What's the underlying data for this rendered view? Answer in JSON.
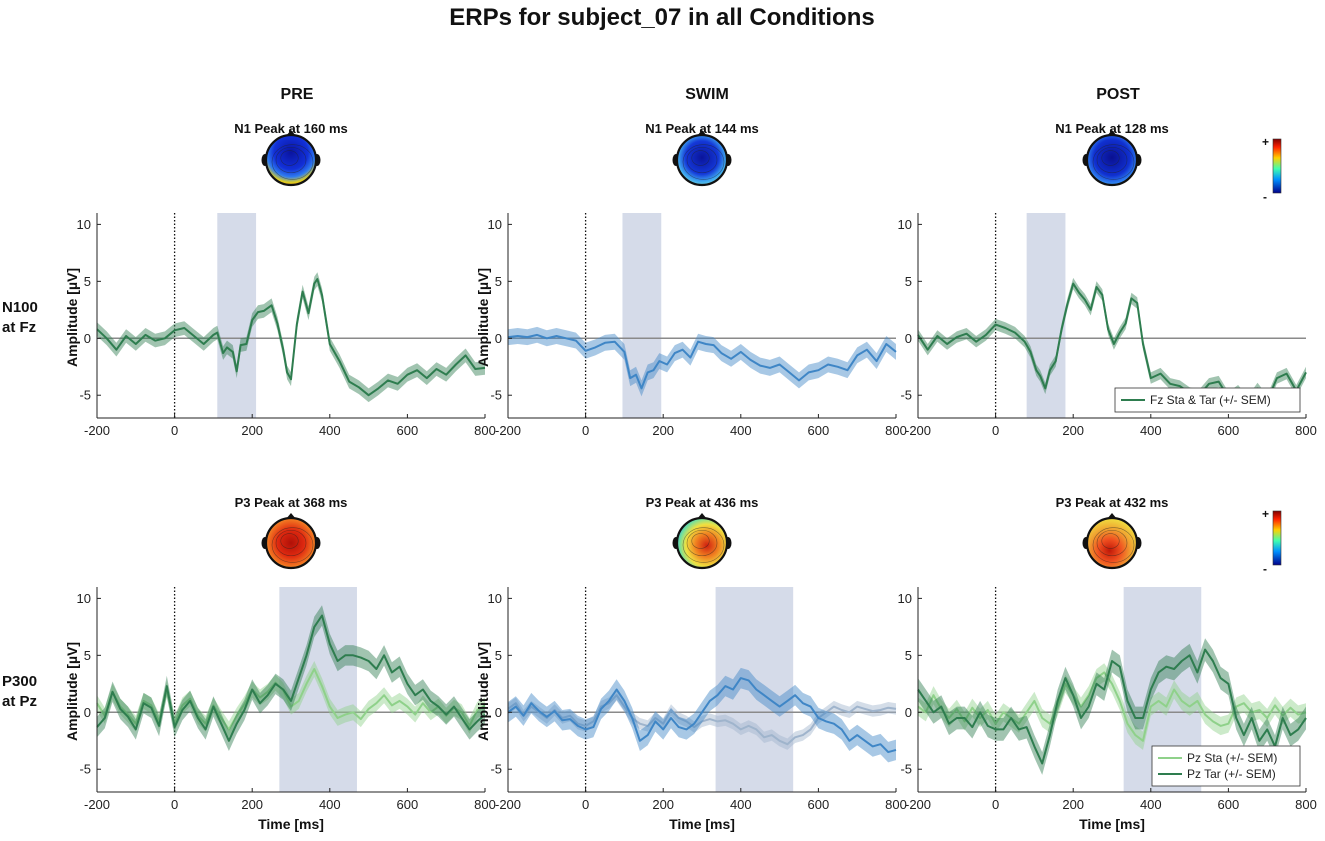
{
  "figure": {
    "title": "ERPs for subject_07 in all Conditions",
    "columns": [
      "PRE",
      "SWIM",
      "POST"
    ],
    "row_labels": [
      {
        "line1": "N100",
        "line2": "at Fz"
      },
      {
        "line1": "P300",
        "line2": "at Pz"
      }
    ],
    "colorbar": {
      "plus": "+",
      "minus": "-"
    }
  },
  "colors": {
    "dark_green": "#2e7d4f",
    "light_green": "#8fd18a",
    "blue": "#3f86c6",
    "light_blue": "#9fb4cc",
    "window": "#d3d9e8",
    "zero_line": "#8a8a8a"
  },
  "chart_data": [
    {
      "type": "line",
      "id": "pre-n100",
      "condition": "PRE",
      "row": 0,
      "peak_title": "N1 Peak at 160 ms",
      "topomap": "n1-pre",
      "xlim": [
        -200,
        800
      ],
      "ylim": [
        -7,
        11
      ],
      "xticks": [
        -200,
        0,
        200,
        400,
        600,
        800
      ],
      "yticks": [
        -5,
        0,
        5,
        10
      ],
      "ylabel": "Amplitude [µV]",
      "xlabel": "",
      "window": [
        110,
        210
      ],
      "x": [
        -200,
        -175,
        -150,
        -125,
        -100,
        -75,
        -50,
        -25,
        0,
        25,
        50,
        75,
        100,
        110,
        125,
        135,
        150,
        160,
        170,
        185,
        200,
        215,
        230,
        250,
        265,
        280,
        290,
        300,
        315,
        330,
        345,
        360,
        368,
        380,
        400,
        425,
        450,
        475,
        500,
        525,
        550,
        575,
        600,
        625,
        650,
        675,
        700,
        725,
        750,
        775,
        800
      ],
      "series": [
        {
          "name": "Fz Sta & Tar (+/- SEM)",
          "color_key": "dark_green",
          "values": [
            0.8,
            0,
            -1,
            0.2,
            -0.5,
            0.3,
            -0.2,
            0,
            0.7,
            0.9,
            0.2,
            -0.5,
            0.3,
            0.5,
            -1.3,
            -0.8,
            -1.2,
            -2.9,
            -0.6,
            -0.5,
            1.6,
            2.3,
            2.4,
            2.9,
            1.3,
            -1.0,
            -3.0,
            -3.6,
            1.2,
            4.1,
            2.2,
            4.8,
            5.2,
            3.8,
            -0.5,
            -2.0,
            -3.8,
            -4.3,
            -5.0,
            -4.4,
            -3.7,
            -4.0,
            -3.2,
            -2.8,
            -3.5,
            -2.7,
            -3.2,
            -2.3,
            -1.5,
            -2.7,
            -2.6
          ],
          "sem": 0.6
        }
      ],
      "legend": null
    },
    {
      "type": "line",
      "id": "swim-n100",
      "condition": "SWIM",
      "row": 0,
      "peak_title": "N1 Peak at 144 ms",
      "topomap": "n1-swim",
      "xlim": [
        -200,
        800
      ],
      "ylim": [
        -7,
        11
      ],
      "xticks": [
        -200,
        0,
        200,
        400,
        600,
        800
      ],
      "yticks": [
        -5,
        0,
        5,
        10
      ],
      "ylabel": "Amplitude [µV]",
      "xlabel": "",
      "window": [
        95,
        195
      ],
      "x": [
        -200,
        -175,
        -150,
        -125,
        -100,
        -75,
        -50,
        -25,
        0,
        25,
        50,
        75,
        100,
        115,
        130,
        144,
        160,
        175,
        190,
        210,
        230,
        250,
        270,
        290,
        310,
        330,
        350,
        375,
        400,
        425,
        450,
        475,
        500,
        525,
        550,
        575,
        600,
        625,
        650,
        675,
        700,
        725,
        750,
        775,
        800
      ],
      "series": [
        {
          "name": "Fz Sta & Tar (+/- SEM)",
          "color_key": "blue",
          "values": [
            0.1,
            0.2,
            0.1,
            0.3,
            0,
            0.2,
            0,
            -0.2,
            -1.1,
            -0.8,
            -0.4,
            -0.3,
            -1.2,
            -3.5,
            -3.2,
            -4.4,
            -3.0,
            -2.8,
            -2.0,
            -2.3,
            -1.3,
            -1.0,
            -1.7,
            -0.3,
            -0.5,
            -0.6,
            -1.3,
            -1.8,
            -1.2,
            -1.9,
            -2.4,
            -2.6,
            -2.3,
            -3.0,
            -3.7,
            -3.0,
            -2.8,
            -2.3,
            -2.5,
            -2.8,
            -1.5,
            -1.0,
            -2.0,
            -0.5,
            -1.2
          ],
          "sem": 0.7
        }
      ],
      "legend": null
    },
    {
      "type": "line",
      "id": "post-n100",
      "condition": "POST",
      "row": 0,
      "peak_title": "N1 Peak at 128 ms",
      "topomap": "n1-post",
      "xlim": [
        -200,
        800
      ],
      "ylim": [
        -7,
        11
      ],
      "xticks": [
        -200,
        0,
        200,
        400,
        600,
        800
      ],
      "yticks": [
        -5,
        0,
        5,
        10
      ],
      "ylabel": "",
      "xlabel": "",
      "window": [
        80,
        180
      ],
      "x": [
        -200,
        -175,
        -150,
        -125,
        -100,
        -75,
        -50,
        -25,
        0,
        25,
        50,
        75,
        90,
        105,
        115,
        128,
        140,
        155,
        170,
        185,
        200,
        215,
        230,
        245,
        260,
        275,
        290,
        305,
        320,
        335,
        350,
        365,
        380,
        400,
        425,
        450,
        475,
        500,
        525,
        550,
        575,
        600,
        625,
        650,
        675,
        700,
        725,
        750,
        775,
        800
      ],
      "series": [
        {
          "name": "Fz Sta & Tar (+/- SEM)",
          "color_key": "dark_green",
          "values": [
            0.3,
            -1.0,
            0.2,
            -0.5,
            0.1,
            0.4,
            -0.3,
            0.3,
            1.2,
            0.9,
            0.5,
            -0.3,
            -1.2,
            -2.8,
            -3.3,
            -4.4,
            -2.8,
            -2.0,
            0.8,
            3.0,
            4.8,
            4.0,
            3.4,
            2.5,
            4.5,
            3.8,
            0.8,
            -0.5,
            0.5,
            1.3,
            3.5,
            3.1,
            -0.5,
            -3.5,
            -3.1,
            -4.0,
            -4.2,
            -4.8,
            -5.0,
            -4.0,
            -3.8,
            -5.2,
            -4.6,
            -5.6,
            -4.4,
            -5.5,
            -3.5,
            -3.1,
            -4.6,
            -3.0
          ],
          "sem": 0.5
        }
      ],
      "legend": {
        "position": "bottom-right",
        "entries": [
          {
            "label": "Fz Sta & Tar (+/- SEM)",
            "color_key": "dark_green"
          }
        ]
      }
    },
    {
      "type": "line",
      "id": "pre-p300",
      "condition": "PRE",
      "row": 1,
      "peak_title": "P3 Peak at 368 ms",
      "topomap": "p3-pre",
      "xlim": [
        -200,
        800
      ],
      "ylim": [
        -7,
        11
      ],
      "xticks": [
        -200,
        0,
        200,
        400,
        600,
        800
      ],
      "yticks": [
        -5,
        0,
        5,
        10
      ],
      "ylabel": "Amplitude [µV]",
      "xlabel": "Time [ms]",
      "window": [
        270,
        470
      ],
      "x": [
        -200,
        -180,
        -160,
        -140,
        -120,
        -100,
        -80,
        -60,
        -40,
        -20,
        0,
        20,
        40,
        60,
        80,
        100,
        120,
        140,
        160,
        180,
        200,
        220,
        240,
        260,
        280,
        300,
        320,
        340,
        360,
        380,
        400,
        420,
        440,
        460,
        480,
        500,
        520,
        540,
        560,
        580,
        600,
        620,
        640,
        660,
        680,
        700,
        720,
        740,
        760,
        780,
        800
      ],
      "series": [
        {
          "name": "Pz Sta (+/- SEM)",
          "color_key": "light_green",
          "values": [
            0.8,
            -0.3,
            1.8,
            0.5,
            -0.2,
            -1.0,
            1.0,
            0.6,
            -0.8,
            2.0,
            -1.0,
            0.6,
            1.2,
            -0.3,
            -1.0,
            0.6,
            -0.5,
            -1.5,
            -0.3,
            0.7,
            2.0,
            1.3,
            1.8,
            2.6,
            1.9,
            0.5,
            1.0,
            2.5,
            3.8,
            2.3,
            0.5,
            -0.5,
            -0.2,
            0,
            -0.6,
            0.3,
            0.8,
            1.5,
            0.6,
            1.0,
            0.5,
            -0.2,
            0.8,
            0,
            0.5,
            -0.3,
            0.4,
            0,
            -1.2,
            0.2,
            0.6
          ],
          "sem": 0.7
        },
        {
          "name": "Pz Tar (+/- SEM)",
          "color_key": "dark_green",
          "values": [
            -1.3,
            -0.5,
            1.8,
            0.3,
            -0.4,
            -1.5,
            0.8,
            0.4,
            -1.2,
            2.3,
            -1.3,
            0.2,
            1.0,
            -0.5,
            -1.5,
            0.5,
            -1.0,
            -2.5,
            -1.0,
            0.2,
            2.0,
            0.8,
            1.5,
            2.5,
            2.0,
            1.0,
            3.0,
            5.0,
            7.5,
            8.5,
            6.0,
            4.5,
            5.0,
            5.0,
            4.8,
            4.5,
            3.8,
            5.0,
            3.5,
            4.0,
            2.5,
            1.5,
            2.0,
            1.0,
            0.5,
            -0.2,
            0.5,
            -0.5,
            -1.5,
            -0.8,
            -0.2
          ],
          "sem": 0.9
        }
      ],
      "legend": null
    },
    {
      "type": "line",
      "id": "swim-p300",
      "condition": "SWIM",
      "row": 1,
      "peak_title": "P3 Peak at 436 ms",
      "topomap": "p3-swim",
      "xlim": [
        -200,
        800
      ],
      "ylim": [
        -7,
        11
      ],
      "xticks": [
        -200,
        0,
        200,
        400,
        600,
        800
      ],
      "yticks": [
        -5,
        0,
        5,
        10
      ],
      "ylabel": "Amplitude [µV]",
      "xlabel": "Time [ms]",
      "window": [
        335,
        535
      ],
      "x": [
        -200,
        -180,
        -160,
        -140,
        -120,
        -100,
        -80,
        -60,
        -40,
        -20,
        0,
        20,
        40,
        60,
        80,
        100,
        120,
        140,
        160,
        180,
        200,
        220,
        240,
        260,
        280,
        300,
        320,
        340,
        360,
        380,
        400,
        420,
        440,
        460,
        480,
        500,
        520,
        540,
        560,
        580,
        600,
        620,
        640,
        660,
        680,
        700,
        720,
        740,
        760,
        780,
        800
      ],
      "series": [
        {
          "name": "Pz Sta (+/- SEM)",
          "color_key": "light_blue",
          "values": [
            0.3,
            0.8,
            -0.3,
            0.5,
            0,
            -0.5,
            0.2,
            -0.5,
            -0.3,
            -1.0,
            -1.2,
            -0.8,
            0.5,
            0.8,
            1.5,
            0.5,
            -0.5,
            -1.0,
            -1.2,
            -0.5,
            -1.0,
            0.2,
            -0.5,
            -0.8,
            -1.3,
            -0.8,
            -0.6,
            -0.8,
            -0.7,
            -1.0,
            -1.5,
            -1.2,
            -1.5,
            -2.2,
            -2.0,
            -2.5,
            -2.8,
            -2.2,
            -2.0,
            -1.5,
            -0.5,
            0,
            0.5,
            0.2,
            0,
            0.5,
            0.3,
            0.1,
            0.2,
            0.4,
            0.3
          ],
          "sem": 0.5
        },
        {
          "name": "Pz Tar (+/- SEM)",
          "color_key": "blue",
          "values": [
            0,
            0.5,
            -0.3,
            0.8,
            0.1,
            -0.4,
            0.1,
            -0.7,
            -0.6,
            -1.2,
            -1.5,
            -1.3,
            0.3,
            1.0,
            2.0,
            1.0,
            -0.5,
            -2.5,
            -2.0,
            -0.8,
            -1.5,
            -0.5,
            -1.3,
            -1.5,
            -1.0,
            0,
            1.0,
            1.5,
            2.3,
            2.0,
            3.0,
            2.8,
            2.0,
            1.5,
            1.0,
            0.5,
            1.0,
            1.5,
            0.8,
            0.5,
            -0.5,
            -0.8,
            -1.0,
            -1.5,
            -2.5,
            -2.0,
            -2.5,
            -3.0,
            -2.8,
            -3.5,
            -3.3
          ],
          "sem": 0.9
        }
      ],
      "legend": null
    },
    {
      "type": "line",
      "id": "post-p300",
      "condition": "POST",
      "row": 1,
      "peak_title": "P3 Peak at 432 ms",
      "topomap": "p3-post",
      "xlim": [
        -200,
        800
      ],
      "ylim": [
        -7,
        11
      ],
      "xticks": [
        -200,
        0,
        200,
        400,
        600,
        800
      ],
      "yticks": [
        -5,
        0,
        5,
        10
      ],
      "ylabel": "",
      "xlabel": "Time [ms]",
      "window": [
        330,
        530
      ],
      "x": [
        -200,
        -180,
        -160,
        -140,
        -120,
        -100,
        -80,
        -60,
        -40,
        -20,
        0,
        20,
        40,
        60,
        80,
        100,
        120,
        140,
        160,
        180,
        200,
        220,
        240,
        260,
        280,
        300,
        320,
        340,
        360,
        380,
        400,
        420,
        440,
        460,
        480,
        500,
        520,
        540,
        560,
        580,
        600,
        620,
        640,
        660,
        680,
        700,
        720,
        740,
        760,
        780,
        800
      ],
      "series": [
        {
          "name": "Pz Sta (+/- SEM)",
          "color_key": "light_green",
          "values": [
            0.5,
            0,
            1.5,
            0.3,
            -0.5,
            0.3,
            -0.8,
            0.4,
            -0.5,
            0.2,
            -1.0,
            0,
            -0.5,
            -1.0,
            0,
            1.0,
            -0.5,
            -1.0,
            0.5,
            2.5,
            1.5,
            0.5,
            1.5,
            3.0,
            3.5,
            2.5,
            1.0,
            -1.0,
            -2.0,
            -2.5,
            0.5,
            1.0,
            0.5,
            2.0,
            1.0,
            0.5,
            1.0,
            -0.2,
            -0.8,
            -1.2,
            -1.0,
            0.5,
            0.8,
            0,
            0.2,
            -0.5,
            0.6,
            -0.3,
            0.4,
            -0.2,
            0
          ],
          "sem": 0.8
        },
        {
          "name": "Pz Tar (+/- SEM)",
          "color_key": "dark_green",
          "values": [
            2.0,
            1.0,
            0,
            0.5,
            -1.0,
            -0.5,
            -0.5,
            -1.3,
            0,
            -1.2,
            -1.5,
            -1.5,
            -0.5,
            -1.5,
            -1.3,
            -3.0,
            -4.5,
            -2.0,
            1.0,
            3.0,
            1.5,
            -0.5,
            0.5,
            2.5,
            2.0,
            4.5,
            4.0,
            1.0,
            -0.5,
            -0.5,
            2.0,
            3.5,
            4.0,
            3.8,
            4.5,
            5.0,
            3.5,
            5.5,
            4.5,
            3.0,
            2.5,
            -0.5,
            -2.0,
            -0.5,
            -2.5,
            -1.5,
            -3.0,
            -0.5,
            -2.0,
            -1.5,
            -0.5
          ],
          "sem": 1.0
        }
      ],
      "legend": {
        "position": "bottom-right",
        "entries": [
          {
            "label": "Pz Sta (+/- SEM)",
            "color_key": "light_green"
          },
          {
            "label": "Pz Tar (+/- SEM)",
            "color_key": "dark_green"
          }
        ]
      }
    }
  ]
}
